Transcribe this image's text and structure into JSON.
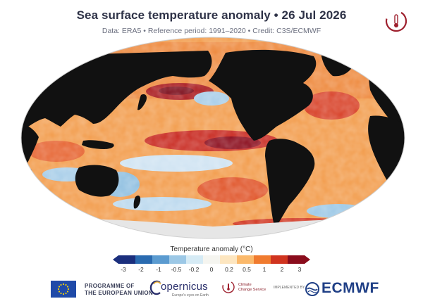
{
  "header": {
    "title": "Sea surface temperature anomaly • 26 Jul 2026",
    "subtitle": "Data: ERA5 • Reference period: 1991–2020 • Credit: C3S/ECMWF"
  },
  "legend": {
    "title": "Temperature anomaly (°C)",
    "ticks": [
      "-3",
      "-2",
      "-1",
      "-0.5",
      "-0.2",
      "0",
      "0.2",
      "0.5",
      "1",
      "2",
      "3"
    ],
    "colors": [
      "#1b2f7d",
      "#2a6bb0",
      "#5b9bd0",
      "#9cc8e6",
      "#d6ebf5",
      "#f5f5f0",
      "#fde6c0",
      "#fbb96b",
      "#f07b2f",
      "#d0341f",
      "#8a0c1c"
    ]
  },
  "map": {
    "projection": "Robinson",
    "ocean_base_color": "#f29c4c",
    "land_color": "#111111",
    "ice_color": "#e6e6e6"
  },
  "footer": {
    "eu_line1": "PROGRAMME OF",
    "eu_line2": "THE EUROPEAN UNION",
    "copernicus": "opernicus",
    "copernicus_tagline": "Europe's eyes on Earth",
    "c3s_line1": "Climate",
    "c3s_line2": "Change Service",
    "implemented_by": "IMPLEMENTED BY",
    "ecmwf": "ECMWF"
  }
}
